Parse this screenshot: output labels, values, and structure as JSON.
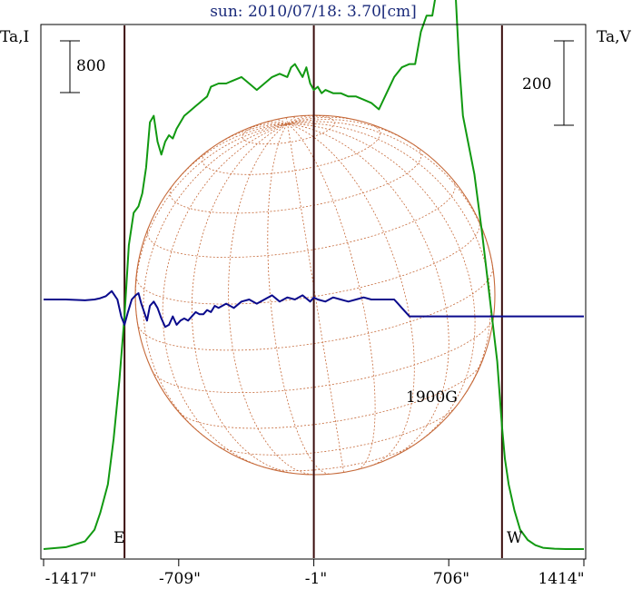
{
  "chart_data": {
    "type": "line",
    "title": "sun: 2010/07/18: 3.70[cm]",
    "left_axis_label": "Ta,I",
    "right_axis_label": "Ta,V",
    "left_scale_label": "800",
    "right_scale_label": "200",
    "x_tick_labels": [
      "-1417\"",
      "-709\"",
      "-1\"",
      "706\"",
      "1414\""
    ],
    "x_ticks": [
      -1417,
      -709,
      -1,
      706,
      1414
    ],
    "xlim": [
      -1417,
      1414
    ],
    "east_label": "E",
    "west_label": "W",
    "annotation": "1900G",
    "limb_lines": [
      -993,
      -1,
      985
    ],
    "colors": {
      "intensity": "#119911",
      "polarization": "#0a0a8c",
      "grid": "#c66a3a",
      "limb": "#3a0c0c"
    },
    "series": [
      {
        "key": "intensity",
        "x": [
          -1417,
          -1300,
          -1200,
          -1150,
          -1120,
          -1080,
          -1050,
          -1020,
          -993,
          -970,
          -945,
          -920,
          -900,
          -880,
          -860,
          -840,
          -820,
          -800,
          -780,
          -760,
          -740,
          -720,
          -700,
          -680,
          -660,
          -640,
          -620,
          -600,
          -580,
          -560,
          -540,
          -500,
          -460,
          -420,
          -380,
          -340,
          -300,
          -260,
          -220,
          -180,
          -140,
          -120,
          -100,
          -80,
          -60,
          -40,
          -20,
          -1,
          20,
          40,
          60,
          100,
          140,
          180,
          220,
          260,
          300,
          340,
          380,
          420,
          460,
          500,
          530,
          560,
          590,
          620,
          640,
          660,
          680,
          700,
          720,
          740,
          760,
          780,
          800,
          840,
          880,
          920,
          960,
          985,
          1000,
          1020,
          1050,
          1080,
          1120,
          1160,
          1200,
          1260,
          1320,
          1414
        ],
        "y": [
          0,
          30,
          120,
          300,
          560,
          1000,
          1700,
          2600,
          3600,
          4700,
          5200,
          5300,
          5500,
          5900,
          6600,
          6700,
          6300,
          6100,
          6300,
          6400,
          6350,
          6500,
          6600,
          6700,
          6750,
          6800,
          6850,
          6900,
          6950,
          7000,
          7150,
          7200,
          7200,
          7250,
          7300,
          7200,
          7100,
          7200,
          7300,
          7350,
          7300,
          7450,
          7500,
          7400,
          7300,
          7450,
          7200,
          7100,
          7150,
          7050,
          7100,
          7050,
          7050,
          7000,
          7000,
          6950,
          6900,
          6800,
          7050,
          7300,
          7450,
          7500,
          7500,
          8000,
          8250,
          8250,
          8600,
          8900,
          9400,
          9650,
          9550,
          8700,
          7550,
          6700,
          6400,
          5800,
          4900,
          3900,
          2900,
          1900,
          1400,
          1000,
          600,
          300,
          140,
          60,
          20,
          5,
          0,
          0
        ]
      },
      {
        "key": "polarization",
        "x": [
          -1417,
          -1300,
          -1200,
          -1150,
          -1120,
          -1090,
          -1060,
          -1030,
          -1010,
          -993,
          -975,
          -955,
          -935,
          -920,
          -905,
          -890,
          -875,
          -860,
          -840,
          -820,
          -800,
          -780,
          -760,
          -740,
          -720,
          -700,
          -680,
          -660,
          -640,
          -620,
          -600,
          -580,
          -560,
          -540,
          -520,
          -500,
          -460,
          -420,
          -380,
          -340,
          -300,
          -260,
          -220,
          -180,
          -140,
          -100,
          -60,
          -20,
          -1,
          20,
          60,
          100,
          140,
          180,
          220,
          260,
          300,
          340,
          380,
          420,
          440,
          460,
          480,
          500,
          520,
          540,
          560,
          580,
          600,
          620,
          640,
          660,
          680,
          700,
          720,
          740,
          760,
          780,
          800,
          820,
          860,
          900,
          940,
          980,
          1000,
          1020,
          1050,
          1080,
          1120,
          1200,
          1300,
          1414
        ],
        "y": [
          0,
          0,
          -2,
          0,
          3,
          8,
          20,
          0,
          -40,
          -60,
          -30,
          0,
          10,
          15,
          -10,
          -30,
          -50,
          -15,
          -5,
          -20,
          -45,
          -65,
          -60,
          -40,
          -60,
          -50,
          -45,
          -50,
          -40,
          -30,
          -35,
          -35,
          -25,
          -30,
          -15,
          -20,
          -10,
          -20,
          -5,
          0,
          -10,
          0,
          10,
          -5,
          5,
          0,
          10,
          -5,
          5,
          0,
          -5,
          5,
          0,
          -5,
          0,
          5,
          0,
          0,
          0,
          0,
          -10,
          -20,
          -30,
          -40,
          -40,
          -40,
          -40,
          -40,
          -40,
          -40,
          -40,
          -40,
          -40,
          -40,
          -40,
          -40,
          -40,
          -40,
          -40,
          -40,
          -40,
          -40,
          -40,
          -40,
          -40,
          -40,
          -40,
          -40,
          -40,
          -40,
          -40,
          -40
        ]
      }
    ]
  }
}
